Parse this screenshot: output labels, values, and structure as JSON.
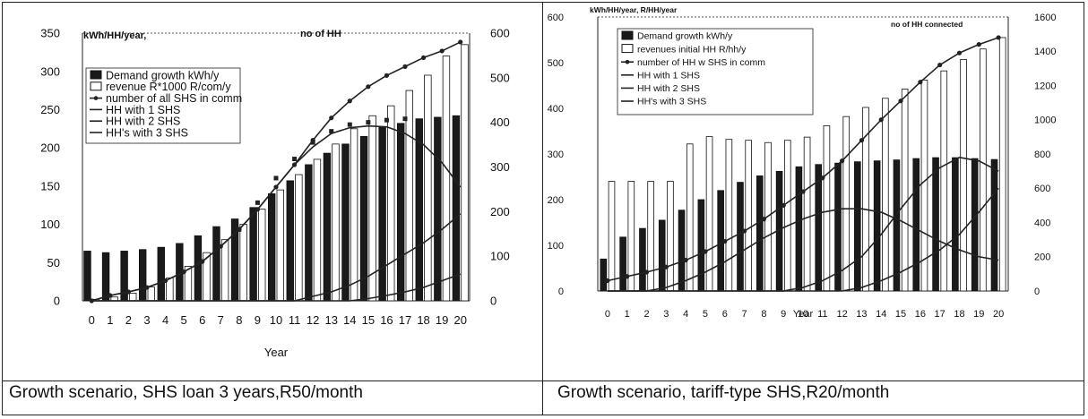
{
  "captions": {
    "left": "Growth scenario, SHS loan 3 years,R50/month",
    "right": "Growth scenario, tariff-type SHS,R20/month"
  },
  "chart_data": [
    {
      "type": "bar",
      "caption": "Growth scenario, SHS loan 3 years,R50/month",
      "xlabel": "Year",
      "left_axis_unit": "kWh/HH/year,",
      "right_axis_unit": "no of HH",
      "categories": [
        "0",
        "1",
        "2",
        "3",
        "4",
        "5",
        "6",
        "7",
        "8",
        "9",
        "10",
        "11",
        "12",
        "13",
        "14",
        "15",
        "16",
        "17",
        "18",
        "19",
        "20"
      ],
      "y_left": {
        "min": 0,
        "max": 350,
        "ticks": [
          0,
          50,
          100,
          150,
          200,
          250,
          300,
          350
        ]
      },
      "y_right": {
        "min": 0,
        "max": 600,
        "ticks": [
          0,
          100,
          200,
          300,
          400,
          500,
          600
        ]
      },
      "legend": [
        "Demand growth kWh/y",
        "revenue R*1000 R/com/y",
        "number of  all SHS in comm",
        "HH with 1 SHS",
        "HH with 2 SHS",
        "HH's with 3 SHS"
      ],
      "series": [
        {
          "name": "Demand growth kWh/y",
          "kind": "bar",
          "fill": "#1a1a1a",
          "axis": "left",
          "values": [
            65,
            63,
            65,
            67,
            70,
            75,
            85,
            97,
            107,
            122,
            140,
            157,
            178,
            193,
            205,
            215,
            227,
            232,
            238,
            240,
            242
          ]
        },
        {
          "name": "revenue R*1000 R/com/y",
          "kind": "bar",
          "fill": "#ffffff",
          "axis": "left",
          "values": [
            2,
            5,
            10,
            18,
            30,
            45,
            63,
            80,
            100,
            120,
            145,
            165,
            185,
            205,
            225,
            242,
            255,
            275,
            295,
            320,
            335
          ]
        },
        {
          "name": "number of  all SHS in comm",
          "kind": "line",
          "axis": "right",
          "values": [
            0,
            12,
            20,
            30,
            45,
            65,
            88,
            122,
            160,
            205,
            255,
            305,
            360,
            410,
            448,
            480,
            505,
            525,
            545,
            560,
            580
          ]
        },
        {
          "name": "HH with 1 SHS",
          "kind": "line",
          "axis": "right",
          "values": [
            0,
            12,
            20,
            30,
            45,
            65,
            88,
            122,
            160,
            205,
            255,
            305,
            345,
            375,
            388,
            392,
            390,
            375,
            350,
            310,
            255
          ]
        },
        {
          "name": "HH with 2 SHS",
          "kind": "line",
          "axis": "right",
          "values": [
            0,
            0,
            0,
            0,
            0,
            0,
            0,
            0,
            0,
            0,
            0,
            0,
            10,
            20,
            35,
            55,
            80,
            105,
            130,
            160,
            195
          ]
        },
        {
          "name": "HH's with 3 SHS",
          "kind": "line",
          "axis": "right",
          "values": [
            0,
            0,
            0,
            0,
            0,
            0,
            0,
            0,
            0,
            0,
            0,
            0,
            0,
            0,
            0,
            5,
            12,
            20,
            30,
            45,
            60
          ]
        },
        {
          "name": "",
          "kind": "markers",
          "axis": "right",
          "values": [
            null,
            null,
            null,
            null,
            null,
            null,
            null,
            null,
            160,
            220,
            275,
            318,
            355,
            380,
            395,
            400,
            405,
            408,
            null,
            null,
            null
          ]
        }
      ]
    },
    {
      "type": "bar",
      "caption": "Growth scenario, tariff-type SHS,R20/month",
      "xlabel": "Year",
      "left_axis_unit": "kWh/HH/year, R/HH/year",
      "right_axis_unit": "no of HH connected",
      "categories": [
        "0",
        "1",
        "2",
        "3",
        "4",
        "5",
        "6",
        "7",
        "8",
        "9",
        "10",
        "11",
        "12",
        "13",
        "14",
        "15",
        "16",
        "17",
        "18",
        "19",
        "20"
      ],
      "y_left": {
        "min": 0,
        "max": 600,
        "ticks": [
          0,
          100,
          200,
          300,
          400,
          500,
          600
        ]
      },
      "y_right": {
        "min": 0,
        "max": 1600,
        "ticks": [
          0,
          200,
          400,
          600,
          800,
          1000,
          1200,
          1400,
          1600
        ]
      },
      "legend": [
        "Demand growth kWh/y",
        "revenues initial HH R/hh/y",
        "number of  HH w SHS in comm",
        "HH with 1 SHS",
        "HH with 2 SHS",
        "HH's with 3 SHS"
      ],
      "series": [
        {
          "name": "Demand growth kWh/y",
          "kind": "bar",
          "fill": "#1a1a1a",
          "axis": "left",
          "values": [
            70,
            118,
            137,
            155,
            177,
            200,
            220,
            238,
            252,
            262,
            272,
            277,
            280,
            283,
            285,
            287,
            290,
            292,
            292,
            290,
            288
          ]
        },
        {
          "name": "revenues initial HH R/hh/y",
          "kind": "bar",
          "fill": "#ffffff",
          "axis": "left",
          "values": [
            240,
            240,
            240,
            240,
            322,
            338,
            332,
            330,
            325,
            330,
            337,
            362,
            382,
            402,
            422,
            442,
            462,
            482,
            507,
            530,
            555
          ]
        },
        {
          "name": "number of  HH w SHS in comm",
          "kind": "line",
          "axis": "right",
          "values": [
            60,
            85,
            110,
            140,
            180,
            230,
            290,
            350,
            420,
            500,
            580,
            660,
            760,
            880,
            1000,
            1110,
            1220,
            1320,
            1390,
            1440,
            1480
          ]
        },
        {
          "name": "HH with 1 SHS",
          "kind": "line",
          "axis": "right",
          "values": [
            0,
            0,
            0,
            20,
            60,
            110,
            170,
            240,
            310,
            370,
            420,
            460,
            480,
            480,
            460,
            410,
            350,
            290,
            240,
            200,
            180
          ]
        },
        {
          "name": "HH with 2 SHS",
          "kind": "line",
          "axis": "right",
          "values": [
            0,
            0,
            0,
            0,
            0,
            0,
            0,
            0,
            0,
            0,
            20,
            60,
            120,
            200,
            330,
            480,
            620,
            720,
            780,
            760,
            700
          ]
        },
        {
          "name": "HH's with 3 SHS",
          "kind": "line",
          "axis": "right",
          "values": [
            0,
            0,
            0,
            0,
            0,
            0,
            0,
            0,
            0,
            0,
            0,
            0,
            0,
            20,
            60,
            110,
            170,
            240,
            330,
            460,
            600
          ]
        }
      ]
    }
  ]
}
